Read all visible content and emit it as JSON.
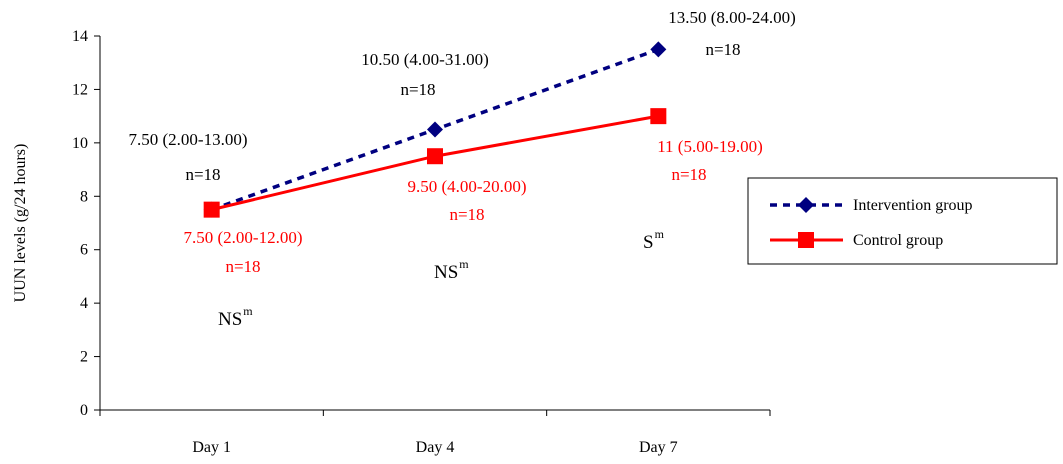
{
  "chart_data": {
    "type": "line",
    "categories": [
      "Day 1",
      "Day 4",
      "Day 7"
    ],
    "ylabel": "UUN levels (g/24 hours)",
    "ylim": [
      0,
      14
    ],
    "yticks": [
      0,
      2,
      4,
      6,
      8,
      10,
      12,
      14
    ],
    "grid": false,
    "legend_position": "right",
    "series": [
      {
        "name": "Intervention group",
        "values": [
          7.5,
          10.5,
          13.5
        ],
        "color": "#000080",
        "line_style": "dashed",
        "marker": "diamond",
        "annotations": [
          {
            "value_text": "7.50 (2.00-13.00)",
            "n_text": "n=18"
          },
          {
            "value_text": "10.50 (4.00-31.00)",
            "n_text": "n=18"
          },
          {
            "value_text": "13.50 (8.00-24.00)",
            "n_text": "n=18"
          }
        ]
      },
      {
        "name": "Control group",
        "values": [
          7.5,
          9.5,
          11
        ],
        "color": "#ff0000",
        "line_style": "solid",
        "marker": "square",
        "annotations": [
          {
            "value_text": "7.50 (2.00-12.00)",
            "n_text": "n=18"
          },
          {
            "value_text": "9.50 (4.00-20.00)",
            "n_text": "n=18"
          },
          {
            "value_text": "11 (5.00-19.00)",
            "n_text": "n=18"
          }
        ]
      }
    ],
    "significance": [
      {
        "base": "NS",
        "sup": "m"
      },
      {
        "base": "NS",
        "sup": "m"
      },
      {
        "base": "S",
        "sup": "m"
      }
    ]
  }
}
